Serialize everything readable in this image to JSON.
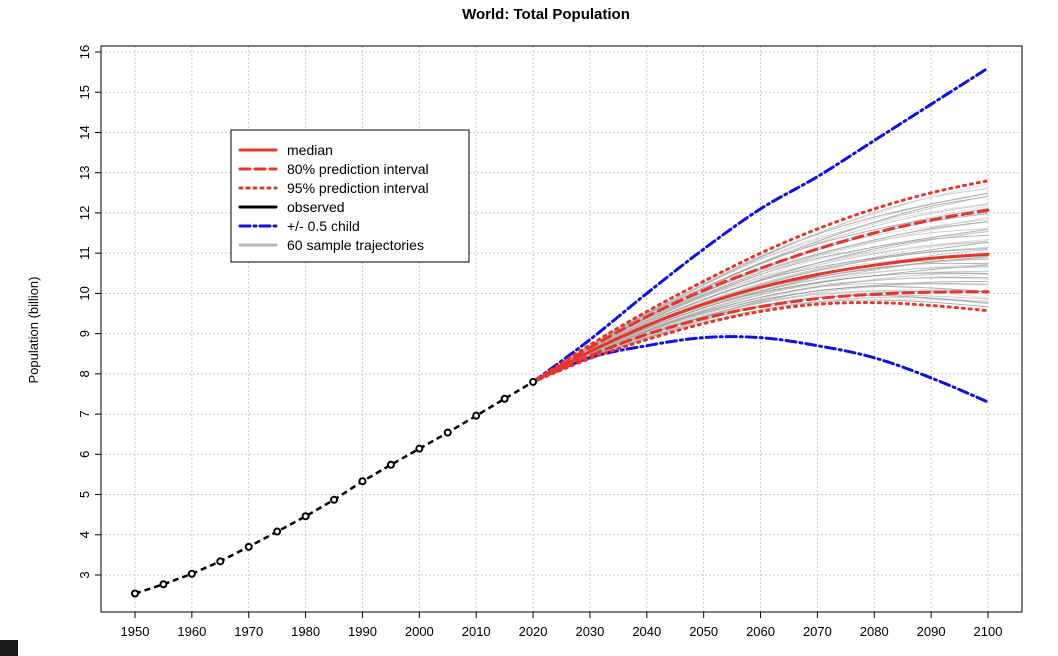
{
  "chart_data": {
    "type": "line",
    "title": "World: Total Population",
    "xlabel": "",
    "ylabel": "Population (billion)",
    "xlim": [
      1950,
      2100
    ],
    "ylim": [
      2.5,
      16
    ],
    "xticks": [
      1950,
      1960,
      1970,
      1980,
      1990,
      2000,
      2010,
      2020,
      2030,
      2040,
      2050,
      2060,
      2070,
      2080,
      2090,
      2100
    ],
    "yticks": [
      3,
      4,
      5,
      6,
      7,
      8,
      9,
      10,
      11,
      12,
      13,
      14,
      15,
      16
    ],
    "grid": true,
    "legend_position": "top-left",
    "legend": [
      {
        "label": "median",
        "color": "#e8342a",
        "style": "solid"
      },
      {
        "label": "80% prediction interval",
        "color": "#e8342a",
        "style": "dashed"
      },
      {
        "label": "95% prediction interval",
        "color": "#e8342a",
        "style": "dotted"
      },
      {
        "label": "observed",
        "color": "#000000",
        "style": "solid"
      },
      {
        "label": "+/- 0.5 child",
        "color": "#1010e0",
        "style": "dashdot"
      },
      {
        "label": "60 sample trajectories",
        "color": "#b8b8b8",
        "style": "solid"
      }
    ],
    "observed": {
      "x": [
        1950,
        1955,
        1960,
        1965,
        1970,
        1975,
        1980,
        1985,
        1990,
        1995,
        2000,
        2005,
        2010,
        2015,
        2020
      ],
      "y": [
        2.54,
        2.77,
        3.03,
        3.34,
        3.7,
        4.08,
        4.46,
        4.87,
        5.33,
        5.74,
        6.14,
        6.54,
        6.96,
        7.38,
        7.8
      ]
    },
    "projection_x": [
      2020,
      2030,
      2040,
      2050,
      2060,
      2070,
      2080,
      2090,
      2100
    ],
    "series": [
      {
        "name": "median",
        "values": [
          7.8,
          8.55,
          9.2,
          9.73,
          10.15,
          10.47,
          10.7,
          10.87,
          10.97
        ]
      },
      {
        "name": "80% prediction interval",
        "values": [
          7.8,
          8.45,
          8.98,
          9.38,
          9.67,
          9.87,
          9.98,
          10.03,
          10.04
        ]
      },
      {
        "name": "80% prediction interval",
        "values": [
          7.8,
          8.65,
          9.42,
          10.08,
          10.62,
          11.1,
          11.5,
          11.82,
          12.07
        ]
      },
      {
        "name": "95% prediction interval",
        "values": [
          7.8,
          8.38,
          8.85,
          9.25,
          9.55,
          9.73,
          9.77,
          9.7,
          9.57
        ]
      },
      {
        "name": "95% prediction interval",
        "values": [
          7.8,
          8.72,
          9.55,
          10.3,
          11.0,
          11.6,
          12.1,
          12.5,
          12.8
        ]
      },
      {
        "name": "+/- 0.5 child",
        "values": [
          7.8,
          8.4,
          8.7,
          8.9,
          8.9,
          8.7,
          8.4,
          7.9,
          7.3
        ]
      },
      {
        "name": "+/- 0.5 child",
        "values": [
          7.8,
          8.85,
          10.0,
          11.1,
          12.1,
          12.9,
          13.8,
          14.7,
          15.6
        ]
      }
    ],
    "sample_trajectories_count": 60
  }
}
